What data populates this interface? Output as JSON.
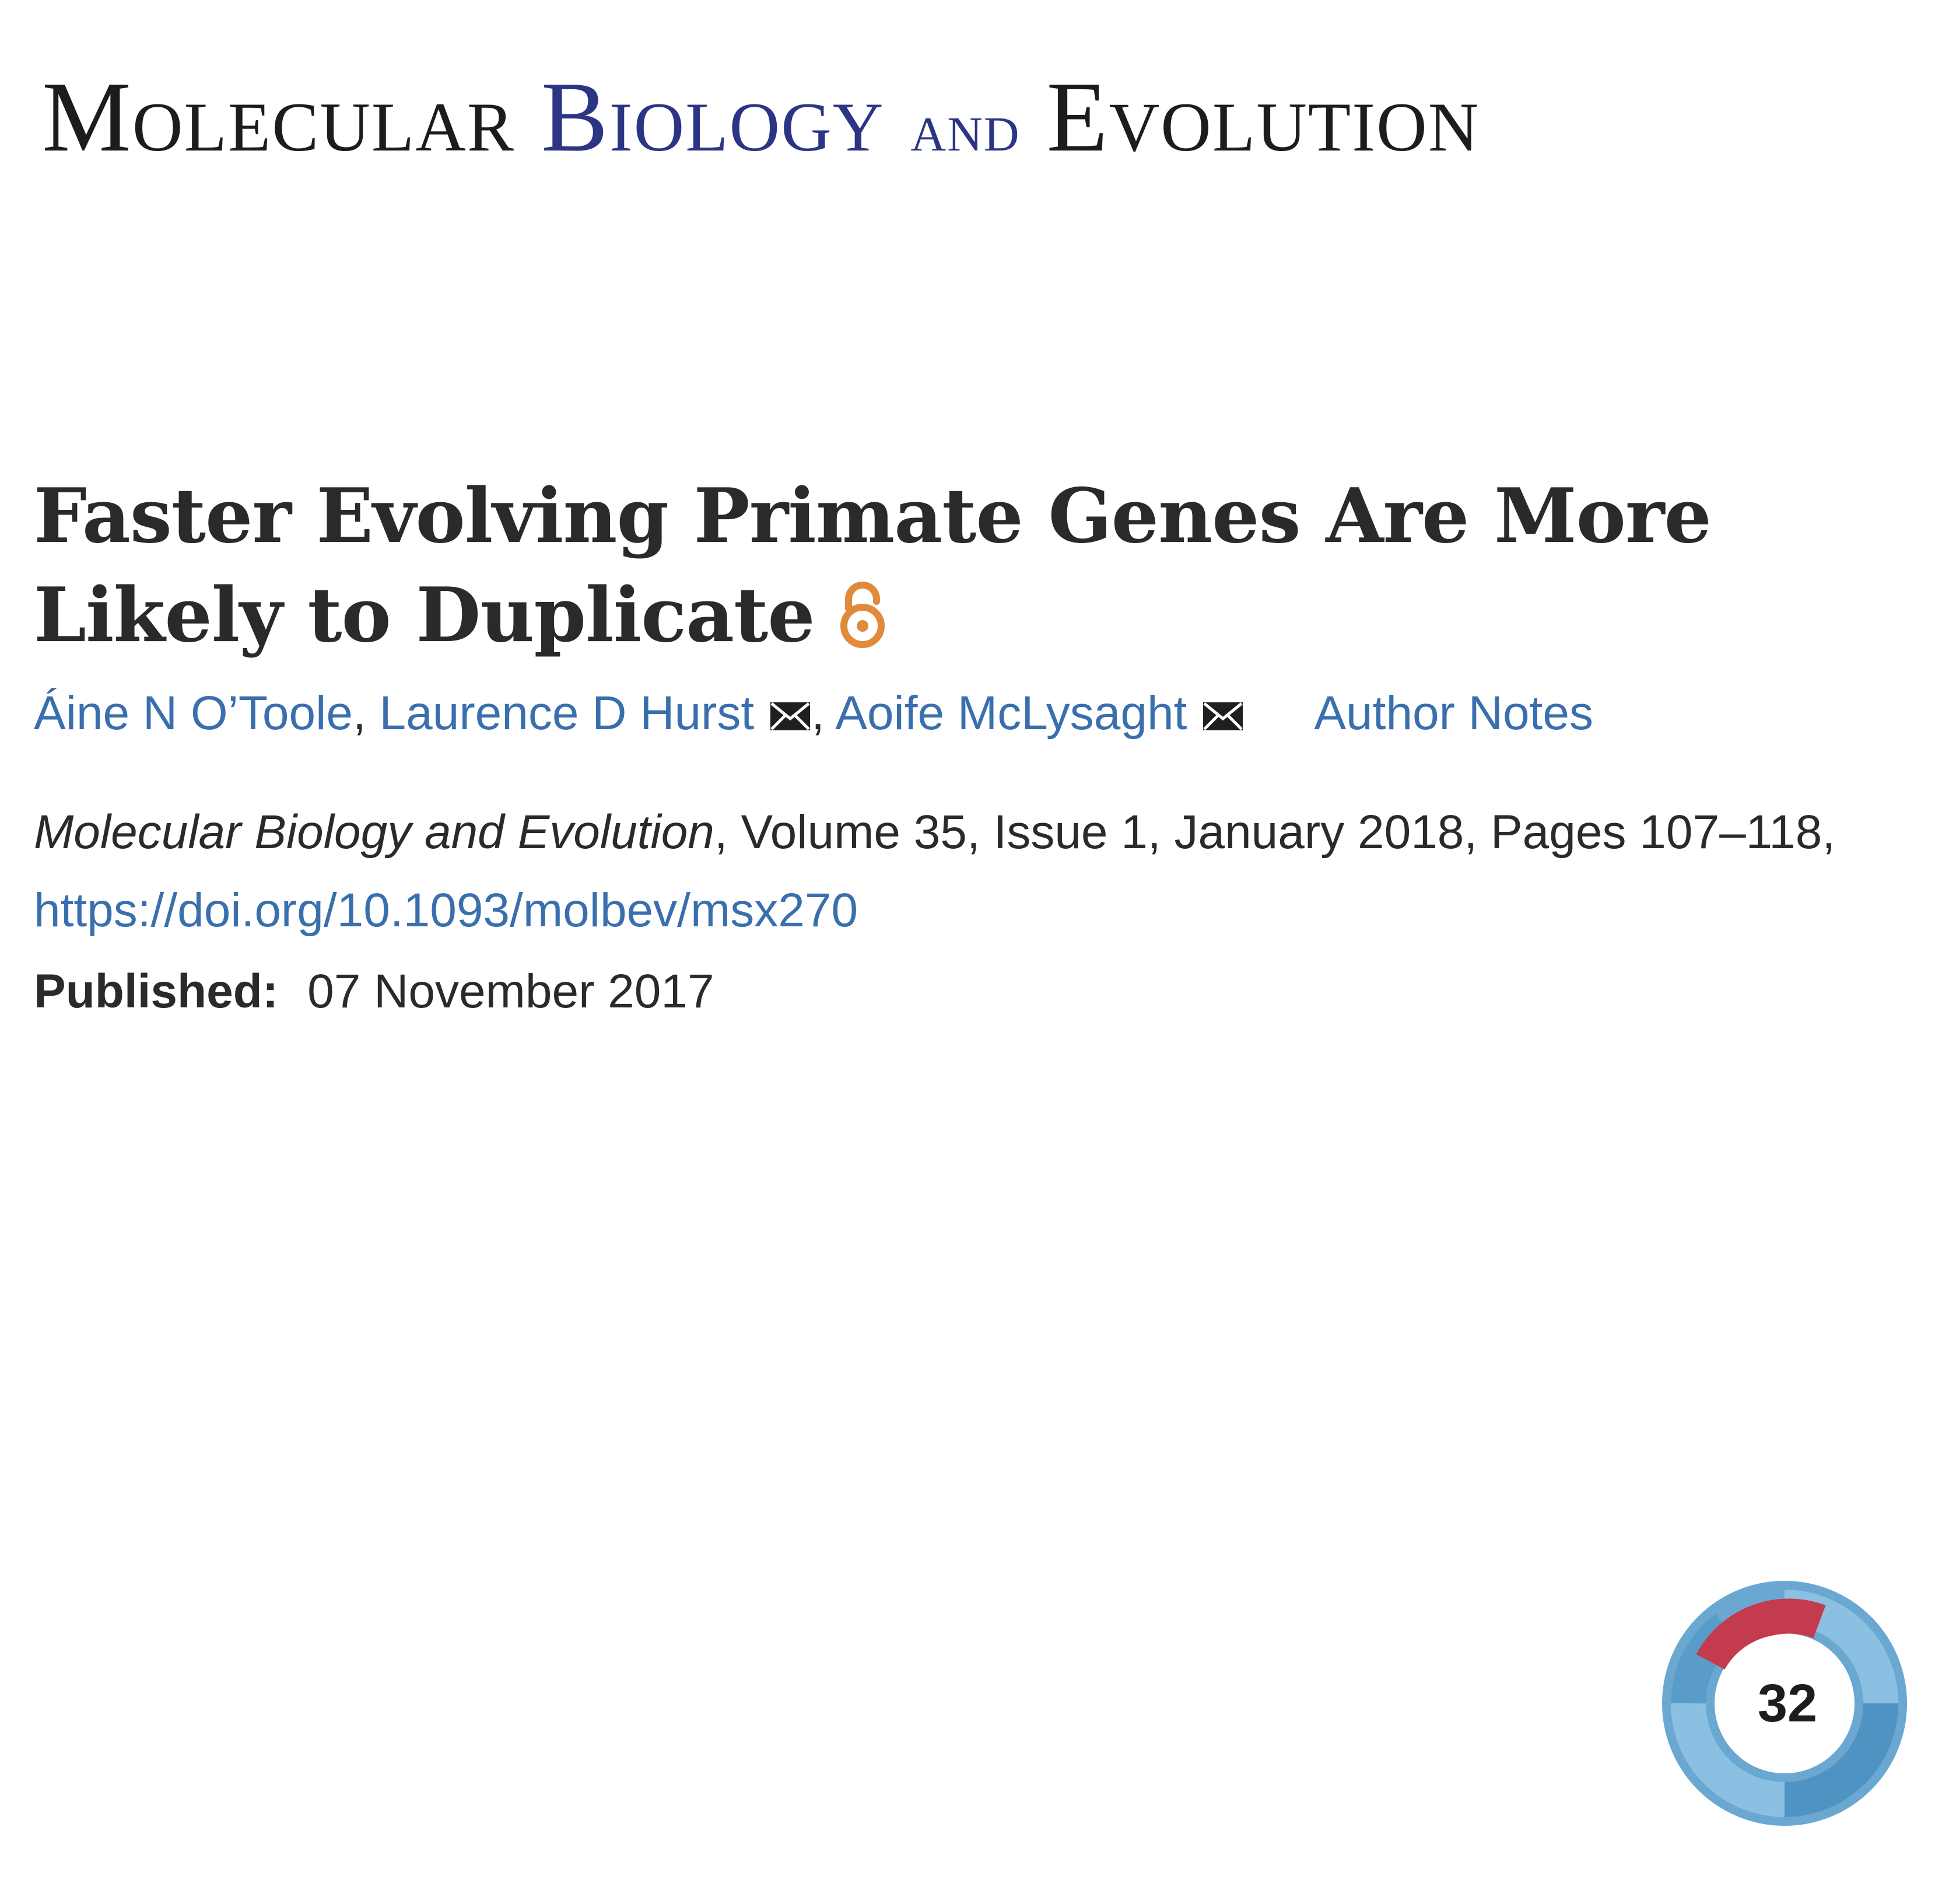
{
  "journal": {
    "name_part1": "Molecular",
    "name_part2": "Biology",
    "name_part3": "and",
    "name_part4": "Evolution",
    "accent_color": "#2b3583"
  },
  "article": {
    "title": "Faster Evolving Primate Genes Are More Likely to Duplicate",
    "open_access_icon": "open-access-lock-icon",
    "open_access_color": "#e08a3c"
  },
  "authors": [
    {
      "name": "Áine N O’Toole",
      "has_email": false,
      "separator": ", "
    },
    {
      "name": "Laurence D Hurst",
      "has_email": true,
      "separator": ", "
    },
    {
      "name": "Aoife McLysaght",
      "has_email": true,
      "separator": ""
    }
  ],
  "author_notes_label": "Author Notes",
  "citation": {
    "journal_italic": "Molecular Biology and Evolution",
    "details": ", Volume 35, Issue 1, January 2018, Pages 107–118,",
    "doi": "https://doi.org/10.1093/molbev/msx270"
  },
  "published": {
    "label": "Published:",
    "date": "07 November 2017"
  },
  "altmetric": {
    "score": "32",
    "ring_colors": [
      "#5a9cc9",
      "#8cc0e2",
      "#c43a4e"
    ]
  },
  "link_color": "#3a6fae"
}
